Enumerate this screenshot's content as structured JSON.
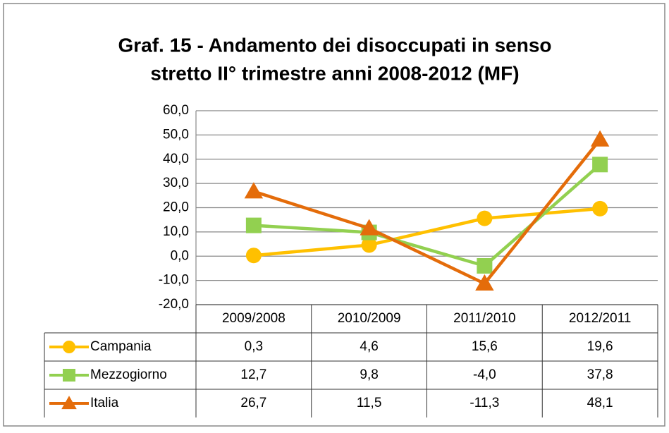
{
  "chart_data": {
    "type": "line",
    "title": "Graf. 15 - Andamento dei disoccupati in senso",
    "subtitle": "stretto  II° trimestre anni 2008-2012 (MF)",
    "categories": [
      "2009/2008",
      "2010/2009",
      "2011/2010",
      "2012/2011"
    ],
    "series": [
      {
        "name": "Campania",
        "color": "#ffc000",
        "marker": "circle",
        "values": [
          0.3,
          4.6,
          15.6,
          19.6
        ],
        "value_labels": [
          "0,3",
          "4,6",
          "15,6",
          "19,6"
        ]
      },
      {
        "name": "Mezzogiorno",
        "color": "#92d050",
        "marker": "square",
        "values": [
          12.7,
          9.8,
          -4.0,
          37.8
        ],
        "value_labels": [
          "12,7",
          "9,8",
          "-4,0",
          "37,8"
        ]
      },
      {
        "name": "Italia",
        "color": "#e46c0a",
        "marker": "triangle",
        "values": [
          26.7,
          11.5,
          -11.3,
          48.1
        ],
        "value_labels": [
          "26,7",
          "11,5",
          "-11,3",
          "48,1"
        ]
      }
    ],
    "ylim": [
      -20,
      60
    ],
    "yticks": [
      {
        "value": -20,
        "label": "-20,0"
      },
      {
        "value": -10,
        "label": "-10,0"
      },
      {
        "value": 0,
        "label": "0,0"
      },
      {
        "value": 10,
        "label": "10,0"
      },
      {
        "value": 20,
        "label": "20,0"
      },
      {
        "value": 30,
        "label": "30,0"
      },
      {
        "value": 40,
        "label": "40,0"
      },
      {
        "value": 50,
        "label": "50,0"
      },
      {
        "value": 60,
        "label": "60,0"
      }
    ],
    "grid": true
  }
}
